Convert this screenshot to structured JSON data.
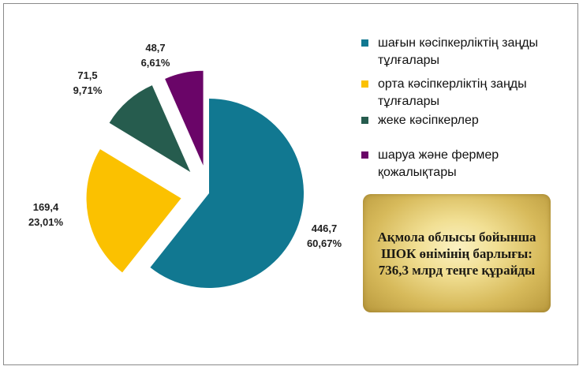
{
  "chart_data": {
    "type": "pie",
    "exploded": true,
    "start_angle_deg": 0,
    "direction": "clockwise",
    "slices": [
      {
        "name": "шағын кәсіпкерліктің заңды тұлғалары",
        "value": 446.7,
        "percent": "60,67%",
        "value_label": "446,7",
        "color": "#117891"
      },
      {
        "name": "орта кәсіпкерліктің заңды тұлғалары",
        "value": 169.4,
        "percent": "23,01%",
        "value_label": "169,4",
        "color": "#fbc100"
      },
      {
        "name": "жеке кәсіпкерлер",
        "value": 71.5,
        "percent": "9,71%",
        "value_label": "71,5",
        "color": "#265c4e"
      },
      {
        "name": "шаруа және фермер қожалықтары",
        "value": 48.7,
        "percent": "6,61%",
        "value_label": "48,7",
        "color": "#6a0568"
      }
    ],
    "legend_position": "right"
  },
  "legend": {
    "items": [
      {
        "label": "шағын кәсіпкерліктің заңды тұлғалары",
        "color": "#117891"
      },
      {
        "label": "орта кәсіпкерліктің заңды тұлғалары",
        "color": "#fbc100"
      },
      {
        "label": "жеке кәсіпкерлер",
        "color": "#265c4e"
      },
      {
        "label": "шаруа және фермер қожалықтары",
        "color": "#6a0568"
      }
    ]
  },
  "total_box": {
    "text": "Ақмола облысы бойынша ШОК өнімінің барлығы: 736,3 млрд теңге құрайды"
  }
}
